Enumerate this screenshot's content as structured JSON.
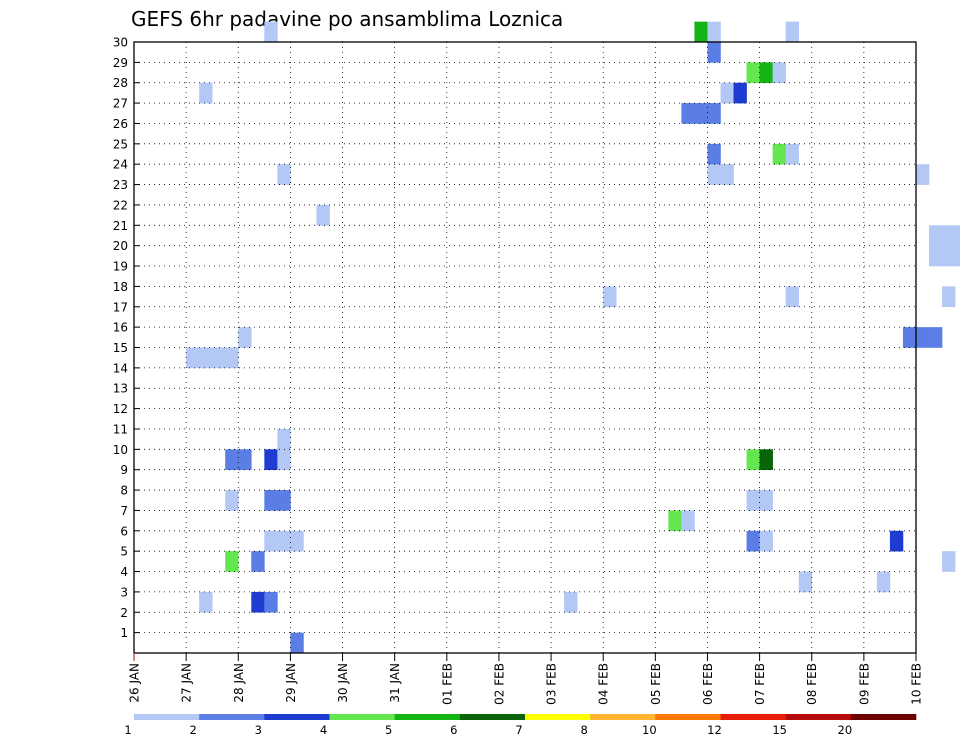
{
  "chart_data": {
    "type": "heatmap",
    "title": "GEFS 6hr padavine po ansamblima Loznica",
    "xlabel": "",
    "ylabel": "",
    "x_start": "26 JAN 00Z",
    "x_range_hours": [
      0,
      360
    ],
    "step_hours": 6,
    "y_range": [
      0,
      30
    ],
    "x_tick_labels": [
      "26 JAN",
      "27 JAN",
      "28 JAN",
      "29 JAN",
      "30 JAN",
      "31 JAN",
      "01 FEB",
      "02 FEB",
      "03 FEB",
      "04 FEB",
      "05 FEB",
      "06 FEB",
      "07 FEB",
      "08 FEB",
      "09 FEB",
      "10 FEB"
    ],
    "y_tick_labels": [
      "1",
      "2",
      "3",
      "4",
      "5",
      "6",
      "7",
      "8",
      "9",
      "10",
      "11",
      "12",
      "13",
      "14",
      "15",
      "16",
      "17",
      "18",
      "19",
      "20",
      "21",
      "22",
      "23",
      "24",
      "25",
      "26",
      "27",
      "28",
      "29",
      "30"
    ],
    "legend": {
      "placement": "bottom",
      "levels": [
        "1",
        "2",
        "3",
        "4",
        "5",
        "6",
        "7",
        "8",
        "10",
        "12",
        "15",
        "20"
      ],
      "colors": [
        "#b4c8f5",
        "#5a7ee6",
        "#1e3cd2",
        "#64e650",
        "#14b414",
        "#0a640a",
        "#ffff00",
        "#ffb432",
        "#ff7800",
        "#e61e0a",
        "#b40a0a",
        "#6e0000"
      ]
    },
    "cells": [
      [
        30,
        10,
        0
      ],
      [
        30,
        43,
        4
      ],
      [
        30,
        44,
        0
      ],
      [
        30,
        50,
        0
      ],
      [
        30,
        100,
        4
      ],
      [
        30,
        101,
        4
      ],
      [
        29,
        44,
        1
      ],
      [
        29,
        108,
        1
      ],
      [
        29,
        117,
        0
      ],
      [
        29,
        118,
        0
      ],
      [
        29,
        135,
        10
      ],
      [
        29,
        136,
        7
      ],
      [
        29,
        144,
        1
      ],
      [
        29,
        171,
        2
      ],
      [
        28,
        47,
        3
      ],
      [
        28,
        48,
        4
      ],
      [
        28,
        49,
        0
      ],
      [
        28,
        139,
        1
      ],
      [
        28,
        140,
        1
      ],
      [
        28,
        141,
        3
      ],
      [
        28,
        160,
        0
      ],
      [
        27,
        5,
        0
      ],
      [
        27,
        45,
        0
      ],
      [
        27,
        46,
        2
      ],
      [
        27,
        98,
        2
      ],
      [
        27,
        99,
        1
      ],
      [
        27,
        133,
        6
      ],
      [
        27,
        137,
        2
      ],
      [
        27,
        139,
        1
      ],
      [
        27,
        140,
        0
      ],
      [
        26,
        42,
        1
      ],
      [
        26,
        43,
        1
      ],
      [
        26,
        44,
        1
      ],
      [
        26,
        127,
        0
      ],
      [
        26,
        133,
        0
      ],
      [
        26,
        138,
        1
      ],
      [
        25,
        78,
        2
      ],
      [
        25,
        79,
        4
      ],
      [
        25,
        80,
        5
      ],
      [
        25,
        81,
        1
      ],
      [
        25,
        153,
        2
      ],
      [
        25,
        154,
        1
      ],
      [
        25,
        155,
        1
      ],
      [
        25,
        156,
        1
      ],
      [
        25,
        157,
        0
      ],
      [
        25,
        158,
        2
      ],
      [
        24,
        44,
        1
      ],
      [
        24,
        49,
        3
      ],
      [
        24,
        50,
        0
      ],
      [
        24,
        133,
        0
      ],
      [
        24,
        134,
        0
      ],
      [
        23,
        11,
        0
      ],
      [
        23,
        44,
        0
      ],
      [
        23,
        45,
        0
      ],
      [
        23,
        60,
        0
      ],
      [
        23,
        66,
        3
      ],
      [
        23,
        108,
        0
      ],
      [
        23,
        147,
        2
      ],
      [
        23,
        148,
        2
      ],
      [
        23,
        153,
        2
      ],
      [
        22,
        119,
        0
      ],
      [
        22,
        120,
        0
      ],
      [
        21,
        14,
        0
      ],
      [
        21,
        159,
        2
      ],
      [
        20,
        61,
        0
      ],
      [
        20,
        62,
        0
      ],
      [
        20,
        63,
        0
      ],
      [
        20,
        64,
        0
      ],
      [
        20,
        123,
        0
      ],
      [
        20,
        143,
        0
      ],
      [
        20,
        144,
        1
      ],
      [
        20,
        148,
        0
      ],
      [
        20,
        149,
        1
      ],
      [
        20,
        150,
        0
      ],
      [
        20,
        151,
        0
      ],
      [
        20,
        152,
        0
      ],
      [
        20,
        153,
        0
      ],
      [
        20,
        154,
        0
      ],
      [
        20,
        156,
        0
      ],
      [
        20,
        157,
        0
      ],
      [
        20,
        158,
        0
      ],
      [
        20,
        159,
        0
      ],
      [
        19,
        61,
        0
      ],
      [
        19,
        62,
        0
      ],
      [
        19,
        63,
        0
      ],
      [
        19,
        64,
        0
      ],
      [
        19,
        143,
        0
      ],
      [
        19,
        148,
        2
      ],
      [
        19,
        149,
        1
      ],
      [
        19,
        150,
        0
      ],
      [
        19,
        151,
        0
      ],
      [
        19,
        152,
        0
      ],
      [
        19,
        153,
        0
      ],
      [
        19,
        156,
        0
      ],
      [
        18,
        148,
        2
      ],
      [
        18,
        149,
        1
      ],
      [
        18,
        150,
        0
      ],
      [
        18,
        153,
        0
      ],
      [
        17,
        36,
        0
      ],
      [
        17,
        50,
        0
      ],
      [
        17,
        62,
        0
      ],
      [
        17,
        143,
        0
      ],
      [
        17,
        146,
        1
      ],
      [
        17,
        148,
        1
      ],
      [
        17,
        150,
        0
      ],
      [
        17,
        151,
        0
      ],
      [
        17,
        152,
        0
      ],
      [
        16,
        110,
        0
      ],
      [
        16,
        125,
        0
      ],
      [
        16,
        126,
        0
      ],
      [
        16,
        127,
        0
      ],
      [
        16,
        128,
        0
      ],
      [
        16,
        129,
        0
      ],
      [
        16,
        130,
        0
      ],
      [
        16,
        148,
        0
      ],
      [
        16,
        155,
        0
      ],
      [
        15,
        8,
        0
      ],
      [
        15,
        59,
        1
      ],
      [
        15,
        60,
        1
      ],
      [
        15,
        61,
        1
      ],
      [
        15,
        74,
        1
      ],
      [
        15,
        75,
        0
      ],
      [
        15,
        157,
        0
      ],
      [
        15,
        161,
        2
      ],
      [
        14,
        4,
        0
      ],
      [
        14,
        5,
        0
      ],
      [
        14,
        6,
        0
      ],
      [
        14,
        7,
        0
      ],
      [
        14,
        134,
        1
      ],
      [
        13,
        74,
        0
      ],
      [
        13,
        75,
        0
      ],
      [
        13,
        76,
        0
      ],
      [
        13,
        101,
        0
      ],
      [
        13,
        121,
        1
      ],
      [
        13,
        126,
        1
      ],
      [
        13,
        138,
        2
      ],
      [
        13,
        139,
        2
      ],
      [
        13,
        140,
        2
      ],
      [
        13,
        141,
        2
      ],
      [
        13,
        142,
        0
      ],
      [
        12,
        124,
        0
      ],
      [
        12,
        133,
        1
      ],
      [
        12,
        134,
        1
      ],
      [
        12,
        145,
        1
      ],
      [
        11,
        70,
        0
      ],
      [
        11,
        71,
        0
      ],
      [
        11,
        72,
        0
      ],
      [
        11,
        145,
        9
      ],
      [
        11,
        146,
        8
      ],
      [
        11,
        147,
        7
      ],
      [
        11,
        148,
        6
      ],
      [
        11,
        149,
        1
      ],
      [
        10,
        11,
        0
      ],
      [
        10,
        119,
        0
      ],
      [
        10,
        120,
        11
      ],
      [
        10,
        121,
        1
      ],
      [
        9,
        7,
        1
      ],
      [
        9,
        8,
        1
      ],
      [
        9,
        10,
        2
      ],
      [
        9,
        11,
        0
      ],
      [
        9,
        47,
        3
      ],
      [
        9,
        48,
        5
      ],
      [
        9,
        114,
        2
      ],
      [
        9,
        155,
        3
      ],
      [
        9,
        156,
        0
      ],
      [
        9,
        157,
        0
      ],
      [
        9,
        158,
        0
      ],
      [
        9,
        159,
        0
      ],
      [
        8,
        90,
        1
      ],
      [
        8,
        131,
        0
      ],
      [
        8,
        153,
        0
      ],
      [
        7,
        7,
        0
      ],
      [
        7,
        10,
        1
      ],
      [
        7,
        11,
        1
      ],
      [
        7,
        47,
        0
      ],
      [
        7,
        48,
        0
      ],
      [
        7,
        79,
        0
      ],
      [
        7,
        126,
        4
      ],
      [
        6,
        41,
        3
      ],
      [
        6,
        42,
        0
      ],
      [
        6,
        130,
        0
      ],
      [
        6,
        136,
        0
      ],
      [
        5,
        10,
        0
      ],
      [
        5,
        11,
        0
      ],
      [
        5,
        12,
        0
      ],
      [
        5,
        47,
        1
      ],
      [
        5,
        48,
        0
      ],
      [
        5,
        58,
        2
      ],
      [
        5,
        139,
        1
      ],
      [
        5,
        140,
        2
      ],
      [
        4,
        7,
        3
      ],
      [
        4,
        9,
        1
      ],
      [
        4,
        62,
        0
      ],
      [
        4,
        136,
        0
      ],
      [
        4,
        142,
        1
      ],
      [
        4,
        143,
        0
      ],
      [
        4,
        144,
        0
      ],
      [
        4,
        145,
        0
      ],
      [
        3,
        51,
        0
      ],
      [
        3,
        57,
        0
      ],
      [
        3,
        152,
        3
      ],
      [
        3,
        155,
        0
      ],
      [
        3,
        161,
        0
      ],
      [
        2,
        5,
        0
      ],
      [
        2,
        9,
        2
      ],
      [
        2,
        10,
        1
      ],
      [
        2,
        33,
        0
      ],
      [
        2,
        141,
        4
      ],
      [
        2,
        142,
        2
      ],
      [
        2,
        153,
        0
      ],
      [
        1,
        74,
        4
      ],
      [
        1,
        75,
        2
      ],
      [
        1,
        76,
        5
      ],
      [
        1,
        77,
        0
      ],
      [
        1,
        78,
        0
      ],
      [
        1,
        142,
        0
      ],
      [
        1,
        145,
        1
      ],
      [
        1,
        146,
        2
      ],
      [
        1,
        155,
        0
      ],
      [
        0,
        12,
        1
      ],
      [
        0,
        101,
        0
      ],
      [
        0,
        158,
        0
      ],
      [
        0,
        159,
        0
      ],
      [
        0,
        160,
        0
      ]
    ]
  }
}
